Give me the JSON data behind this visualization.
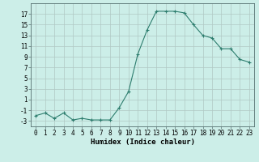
{
  "x": [
    0,
    1,
    2,
    3,
    4,
    5,
    6,
    7,
    8,
    9,
    10,
    11,
    12,
    13,
    14,
    15,
    16,
    17,
    18,
    19,
    20,
    21,
    22,
    23
  ],
  "y": [
    -2,
    -1.5,
    -2.5,
    -1.5,
    -2.8,
    -2.5,
    -2.8,
    -2.8,
    -2.8,
    -0.5,
    2.5,
    9.5,
    14,
    17.5,
    17.5,
    17.5,
    17.2,
    15,
    13,
    12.5,
    10.5,
    10.5,
    8.5,
    8
  ],
  "line_color": "#2d7d6e",
  "marker": "+",
  "marker_size": 3,
  "bg_color": "#cceee8",
  "grid_color": "#b0c8c4",
  "xlabel": "Humidex (Indice chaleur)",
  "xlim": [
    -0.5,
    23.5
  ],
  "ylim": [
    -4,
    19
  ],
  "yticks": [
    -3,
    -1,
    1,
    3,
    5,
    7,
    9,
    11,
    13,
    15,
    17
  ],
  "xticks": [
    0,
    1,
    2,
    3,
    4,
    5,
    6,
    7,
    8,
    9,
    10,
    11,
    12,
    13,
    14,
    15,
    16,
    17,
    18,
    19,
    20,
    21,
    22,
    23
  ],
  "tick_fontsize": 5.5,
  "xlabel_fontsize": 6.5
}
